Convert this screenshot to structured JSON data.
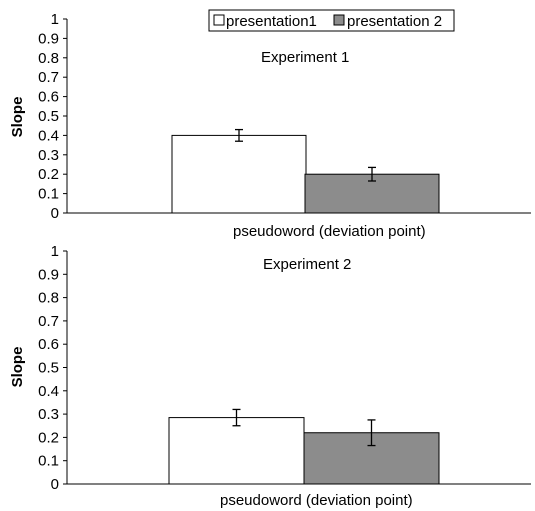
{
  "colors": {
    "presentation1": "#ffffff",
    "presentation2": "#8c8c8c",
    "axis": "#000000"
  },
  "legend": {
    "placement": "top-center"
  },
  "chart_data": [
    {
      "type": "bar",
      "title": "Experiment 1",
      "ylabel": "Slope",
      "category_label": "pseudoword (deviation point)",
      "ylim": [
        0,
        1
      ],
      "yticks": [
        "0",
        "0.1",
        "0.2",
        "0.3",
        "0.4",
        "0.5",
        "0.6",
        "0.7",
        "0.8",
        "0.9",
        "1"
      ],
      "series": [
        {
          "name": "presentation1",
          "value": 0.4,
          "error": 0.03
        },
        {
          "name": "presentation 2",
          "value": 0.2,
          "error": 0.035
        }
      ]
    },
    {
      "type": "bar",
      "title": "Experiment 2",
      "ylabel": "Slope",
      "category_label": "pseudoword (deviation point)",
      "ylim": [
        0,
        1
      ],
      "yticks": [
        "0",
        "0.1",
        "0.2",
        "0.3",
        "0.4",
        "0.5",
        "0.6",
        "0.7",
        "0.8",
        "0.9",
        "1"
      ],
      "series": [
        {
          "name": "presentation1",
          "value": 0.285,
          "error": 0.035
        },
        {
          "name": "presentation 2",
          "value": 0.22,
          "error": 0.055
        }
      ]
    }
  ]
}
